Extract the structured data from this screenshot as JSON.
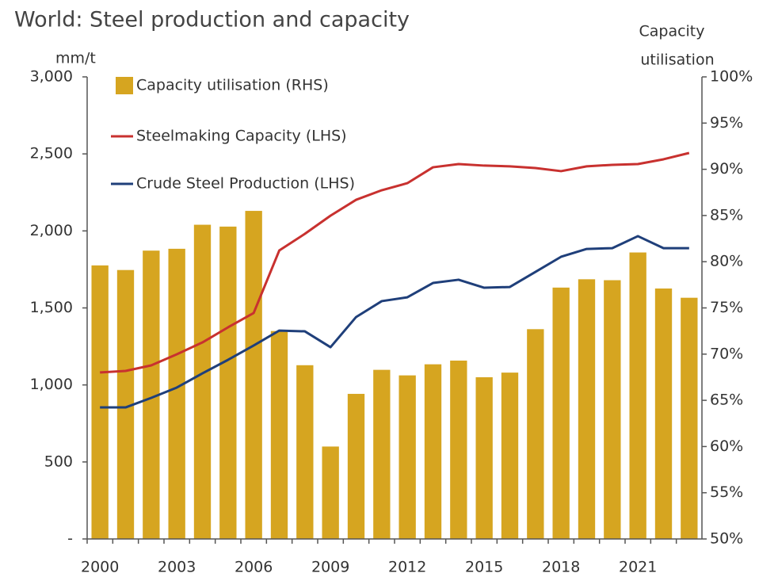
{
  "chart_data": {
    "type": "bar-line",
    "title": "World: Steel production and capacity",
    "ylabel": "mm/t",
    "y2label": [
      "Capacity",
      "utilisation"
    ],
    "categories": [
      "2000",
      null,
      null,
      "2003",
      null,
      null,
      "2006",
      null,
      null,
      "2009",
      null,
      null,
      "2012",
      null,
      null,
      "2015",
      null,
      null,
      "2018",
      null,
      null,
      "2021",
      null,
      null
    ],
    "series": [
      {
        "name": "Capacity utilisation (RHS)",
        "type": "bar",
        "axis": "y2",
        "color": "#d6a520",
        "values": [
          79.6,
          79.1,
          81.2,
          81.4,
          84.0,
          83.8,
          85.5,
          72.5,
          68.8,
          60.0,
          65.7,
          68.3,
          67.7,
          68.9,
          69.3,
          67.5,
          68.0,
          72.7,
          77.2,
          78.1,
          78.0,
          81.0,
          77.1,
          76.1
        ]
      },
      {
        "name": "Steelmaking Capacity (LHS)",
        "type": "line",
        "color": "#c8312f",
        "values": [
          1081,
          1091,
          1127,
          1199,
          1276,
          1374,
          1467,
          1873,
          1981,
          2099,
          2202,
          2264,
          2310,
          2413,
          2434,
          2424,
          2419,
          2408,
          2388,
          2419,
          2429,
          2434,
          2465,
          2506
        ]
      },
      {
        "name": "Crude Steel Production (LHS)",
        "type": "line",
        "color": "#1f3f7a",
        "values": [
          854,
          854,
          916,
          983,
          1075,
          1163,
          1256,
          1353,
          1348,
          1245,
          1441,
          1544,
          1569,
          1662,
          1683,
          1631,
          1636,
          1734,
          1832,
          1883,
          1888,
          1966,
          1888,
          1888
        ]
      }
    ],
    "ylim": [
      0,
      3000
    ],
    "yticks": [
      {
        "value": 0,
        "label": "-"
      },
      500,
      {
        "value": 1000,
        "label": "1,000"
      },
      {
        "value": 1500,
        "label": "1,500"
      },
      {
        "value": 2000,
        "label": "2,000"
      },
      {
        "value": 2500,
        "label": "2,500"
      },
      {
        "value": 3000,
        "label": "3,000"
      }
    ],
    "y2lim": [
      50,
      100
    ],
    "y2ticks": [
      {
        "value": 50,
        "label": "50%"
      },
      {
        "value": 55,
        "label": "55%"
      },
      {
        "value": 60,
        "label": "60%"
      },
      {
        "value": 65,
        "label": "65%"
      },
      {
        "value": 70,
        "label": "70%"
      },
      {
        "value": 75,
        "label": "75%"
      },
      {
        "value": 80,
        "label": "80%"
      },
      {
        "value": 85,
        "label": "85%"
      },
      {
        "value": 90,
        "label": "90%"
      },
      {
        "value": 95,
        "label": "95%"
      },
      {
        "value": 100,
        "label": "100%"
      }
    ],
    "legend": "upper left",
    "grid": false
  }
}
